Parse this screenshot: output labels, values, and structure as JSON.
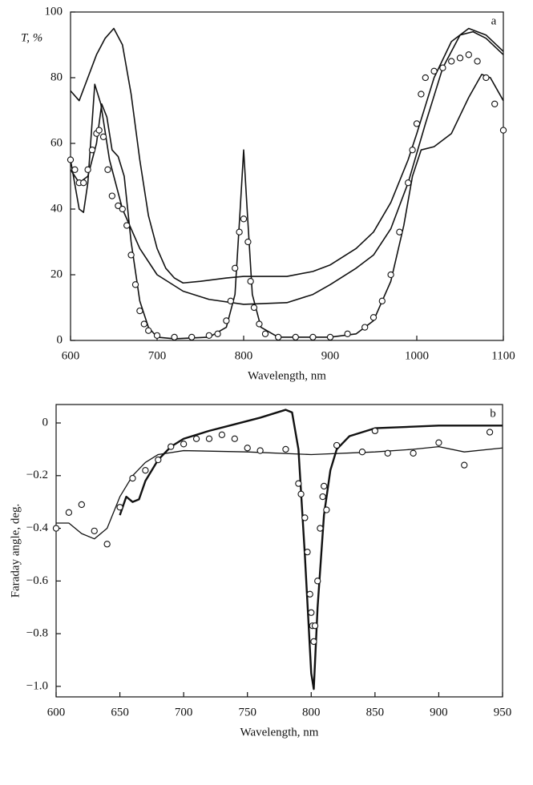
{
  "chart_data": [
    {
      "type": "line",
      "annotation": "a",
      "ylabel": "T, %",
      "xlabel": "Wavelength, nm",
      "xlim": [
        600,
        1100
      ],
      "ylim": [
        0,
        100
      ],
      "xticks": [
        600,
        700,
        800,
        900,
        1000,
        1100
      ],
      "yticks": [
        0,
        20,
        40,
        60,
        80,
        100
      ],
      "series": [
        {
          "style": "line",
          "color": "#111111",
          "linewidth": 1.6,
          "x": [
            600,
            610,
            620,
            630,
            640,
            650,
            660,
            670,
            680,
            690,
            700,
            710,
            720,
            730,
            750,
            780,
            800,
            850,
            880,
            900,
            930,
            950,
            970,
            990,
            1000,
            1020,
            1040,
            1060,
            1080,
            1100
          ],
          "values": [
            76,
            73,
            80,
            87,
            92,
            95,
            90,
            75,
            55,
            38,
            28,
            22,
            19,
            17.5,
            18,
            19,
            19.5,
            19.5,
            21,
            23,
            28,
            33,
            42,
            55,
            63,
            80,
            91,
            95,
            93,
            88
          ]
        },
        {
          "style": "line",
          "color": "#111111",
          "linewidth": 1.6,
          "x": [
            600,
            610,
            615,
            620,
            628,
            635,
            645,
            660,
            680,
            700,
            730,
            760,
            800,
            850,
            880,
            900,
            930,
            950,
            970,
            990,
            1010,
            1030,
            1050,
            1065,
            1080,
            1100
          ],
          "values": [
            55,
            40,
            39,
            48,
            78,
            72,
            55,
            40,
            28,
            20,
            15,
            12.5,
            11,
            11.5,
            14,
            17,
            22,
            26,
            34,
            48,
            66,
            83,
            93,
            94,
            92,
            87
          ]
        },
        {
          "style": "line",
          "color": "#111111",
          "linewidth": 1.6,
          "x": [
            600,
            610,
            620,
            630,
            636,
            642,
            648,
            655,
            662,
            670,
            680,
            690,
            700,
            720,
            760,
            780,
            790,
            796,
            800,
            804,
            810,
            820,
            840,
            900,
            930,
            950,
            970,
            985,
            995,
            1005,
            1020,
            1040,
            1060,
            1075,
            1085,
            1100
          ],
          "values": [
            52,
            48,
            50,
            60,
            72,
            68,
            58,
            56,
            50,
            30,
            12,
            4,
            1,
            0.5,
            1,
            4,
            14,
            40,
            58,
            40,
            14,
            4,
            1,
            1,
            2,
            6,
            18,
            35,
            50,
            58,
            59,
            63,
            74,
            81,
            80,
            73
          ]
        },
        {
          "style": "markers",
          "color": "#111111",
          "x": [
            600,
            605,
            610,
            615,
            620,
            625,
            630,
            633,
            638,
            643,
            648,
            655,
            660,
            665,
            670,
            675,
            680,
            685,
            690,
            700,
            720,
            740,
            760,
            770,
            780,
            785,
            790,
            795,
            800,
            805,
            808,
            812,
            818,
            825,
            840,
            860,
            880,
            900,
            920,
            940,
            950,
            960,
            970,
            980,
            990,
            995,
            1000,
            1005,
            1010,
            1020,
            1030,
            1040,
            1050,
            1060,
            1070,
            1080,
            1090,
            1100
          ],
          "values": [
            55,
            52,
            48,
            48,
            52,
            58,
            63,
            64,
            62,
            52,
            44,
            41,
            40,
            35,
            26,
            17,
            9,
            5,
            3,
            1.5,
            1,
            1,
            1.5,
            2,
            6,
            12,
            22,
            33,
            37,
            30,
            18,
            10,
            5,
            2,
            1,
            1,
            1,
            1,
            2,
            4,
            7,
            12,
            20,
            33,
            48,
            58,
            66,
            75,
            80,
            82,
            83,
            85,
            86,
            87,
            85,
            80,
            72,
            64
          ]
        }
      ]
    },
    {
      "type": "line",
      "annotation": "b",
      "ylabel": "Faraday angle, deg.",
      "xlabel": "Wavelength, nm",
      "xlim": [
        600,
        950
      ],
      "ylim": [
        -1.04,
        0.07
      ],
      "xticks": [
        600,
        650,
        700,
        750,
        800,
        850,
        900,
        950
      ],
      "yticks": [
        {
          "value": -1.0,
          "label": "−1.0"
        },
        {
          "value": -0.8,
          "label": "−0.8"
        },
        {
          "value": -0.6,
          "label": "−0.6"
        },
        {
          "value": -0.4,
          "label": "−0.4"
        },
        {
          "value": -0.2,
          "label": "−0.2"
        },
        0
      ],
      "series": [
        {
          "style": "line",
          "color": "#111111",
          "linewidth": 2.4,
          "x": [
            650,
            655,
            660,
            665,
            670,
            680,
            690,
            700,
            720,
            740,
            760,
            780,
            785,
            790,
            795,
            800,
            802,
            805,
            810,
            815,
            820,
            830,
            850,
            900,
            950
          ],
          "values": [
            -0.35,
            -0.28,
            -0.3,
            -0.29,
            -0.22,
            -0.14,
            -0.09,
            -0.06,
            -0.03,
            -0.005,
            0.02,
            0.05,
            0.04,
            -0.1,
            -0.5,
            -0.95,
            -1.01,
            -0.7,
            -0.35,
            -0.18,
            -0.1,
            -0.05,
            -0.02,
            -0.01,
            -0.01
          ]
        },
        {
          "style": "line",
          "color": "#111111",
          "linewidth": 1.3,
          "x": [
            600,
            610,
            620,
            630,
            640,
            650,
            660,
            670,
            680,
            700,
            750,
            800,
            850,
            880,
            900,
            920,
            950
          ],
          "values": [
            -0.38,
            -0.38,
            -0.42,
            -0.44,
            -0.4,
            -0.28,
            -0.2,
            -0.15,
            -0.12,
            -0.105,
            -0.11,
            -0.12,
            -0.11,
            -0.1,
            -0.09,
            -0.11,
            -0.095
          ]
        },
        {
          "style": "markers",
          "color": "#111111",
          "x": [
            600,
            610,
            620,
            630,
            640,
            650,
            660,
            670,
            680,
            690,
            700,
            710,
            720,
            730,
            740,
            750,
            760,
            780,
            790,
            792,
            795,
            797,
            799,
            800,
            801,
            802,
            803,
            805,
            807,
            809,
            810,
            812,
            820,
            840,
            850,
            860,
            880,
            900,
            920,
            940
          ],
          "values": [
            -0.4,
            -0.34,
            -0.31,
            -0.41,
            -0.46,
            -0.32,
            -0.21,
            -0.18,
            -0.14,
            -0.09,
            -0.08,
            -0.06,
            -0.06,
            -0.045,
            -0.06,
            -0.095,
            -0.105,
            -0.1,
            -0.23,
            -0.27,
            -0.36,
            -0.49,
            -0.65,
            -0.72,
            -0.77,
            -0.83,
            -0.77,
            -0.6,
            -0.4,
            -0.28,
            -0.24,
            -0.33,
            -0.085,
            -0.11,
            -0.03,
            -0.115,
            -0.115,
            -0.075,
            -0.16,
            -0.035
          ]
        }
      ]
    }
  ]
}
